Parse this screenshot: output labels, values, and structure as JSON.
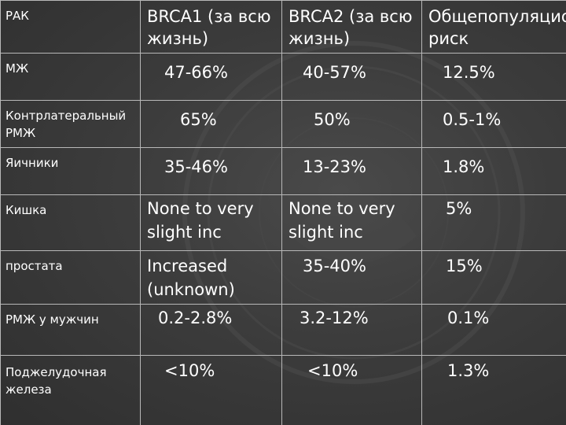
{
  "header": {
    "col0": "РАК",
    "col1": "BRCA1 (за всю жизнь)",
    "col2": "BRCA2 (за всю жизнь)",
    "col3": "Общепопуляционный риск"
  },
  "rows": [
    {
      "label": "МЖ",
      "brca1": "47-66%",
      "brca2": "40-57%",
      "general": "12.5%"
    },
    {
      "label": "Контрлатеральный РМЖ",
      "brca1": "65%",
      "brca2": "50%",
      "general": "0.5-1%"
    },
    {
      "label": "Яичники",
      "brca1": "35-46%",
      "brca2": "13-23%",
      "general": "1.8%"
    },
    {
      "label": "Кишка",
      "brca1": "None to very slight inc",
      "brca2": "None to very slight inc",
      "general": "5%"
    },
    {
      "label": "простата",
      "brca1": "Increased (unknown)",
      "brca2": "35-40%",
      "general": "15%"
    },
    {
      "label": "РМЖ у мужчин",
      "brca1": "0.2-2.8%",
      "brca2": "3.2-12%",
      "general": "0.1%"
    },
    {
      "label": "Поджелудочная железа",
      "brca1": "<10%",
      "brca2": "<10%",
      "general": "1.3%"
    }
  ],
  "colors": {
    "background": "#3c3c3c",
    "grid": "#b8b8b8",
    "text": "#ffffff"
  }
}
